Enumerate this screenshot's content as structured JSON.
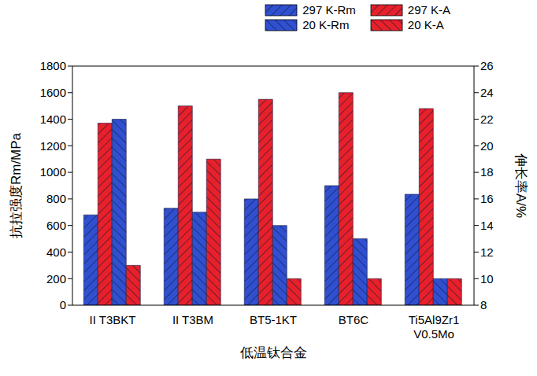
{
  "chart_data": {
    "type": "bar",
    "x_label": "低温钛合金",
    "y_label": "抗拉强度Rm/MPa",
    "y2_label": "伸长率A/%",
    "categories": [
      "II T3BKT",
      "II T3BM",
      "BT5-1KT",
      "BT6C",
      "Ti5Al9Zr1\nV0.5Mo"
    ],
    "series": [
      {
        "name": "297 K-Rm",
        "color": "#2f50d0",
        "values": [
          680,
          730,
          800,
          900,
          835
        ]
      },
      {
        "name": "297 K-A",
        "color": "#e8202a",
        "axis": "y2",
        "values": [
          21.7,
          23,
          23.5,
          24,
          22.8
        ]
      },
      {
        "name": "20 K-Rm",
        "color": "#2f50d0",
        "values": [
          1400,
          700,
          600,
          500,
          200
        ]
      },
      {
        "name": "20 K-A",
        "color": "#e8202a",
        "axis": "y2",
        "values": [
          11,
          19,
          10,
          10,
          10
        ]
      }
    ],
    "ylim": [
      0,
      1800
    ],
    "yticks": [
      0,
      200,
      400,
      600,
      800,
      1000,
      1200,
      1400,
      1600,
      1800
    ],
    "y2lim": [
      8,
      26
    ],
    "y2ticks": [
      8,
      10,
      12,
      14,
      16,
      18,
      20,
      22,
      24,
      26
    ],
    "grid": false,
    "legend": "top"
  }
}
